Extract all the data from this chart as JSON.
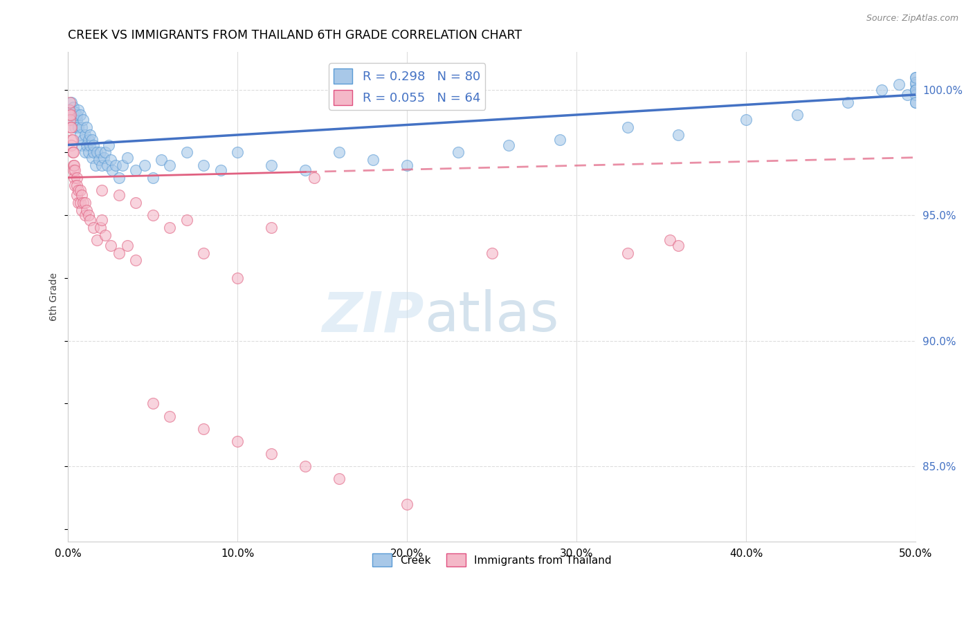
{
  "title": "CREEK VS IMMIGRANTS FROM THAILAND 6TH GRADE CORRELATION CHART",
  "source": "Source: ZipAtlas.com",
  "ylabel": "6th Grade",
  "xlim": [
    0.0,
    50.0
  ],
  "ylim": [
    82.0,
    101.5
  ],
  "x_ticks": [
    0.0,
    10.0,
    20.0,
    30.0,
    40.0,
    50.0
  ],
  "x_tick_labels": [
    "0.0%",
    "10.0%",
    "20.0%",
    "30.0%",
    "40.0%",
    "50.0%"
  ],
  "y_ticks_right": [
    85.0,
    90.0,
    95.0,
    100.0
  ],
  "y_tick_labels_right": [
    "85.0%",
    "90.0%",
    "95.0%",
    "100.0%"
  ],
  "legend_top": [
    {
      "label": "R = 0.298   N = 80",
      "face": "#a8c8e8",
      "edge": "#5b9bd5"
    },
    {
      "label": "R = 0.055   N = 64",
      "face": "#f4b8c8",
      "edge": "#e05080"
    }
  ],
  "legend_bottom": [
    "Creek",
    "Immigrants from Thailand"
  ],
  "watermark_zip": "ZIP",
  "watermark_atlas": "atlas",
  "blue_line_color": "#4472c4",
  "pink_line_color": "#e06080",
  "blue_scatter_face": "#a8c8e8",
  "blue_scatter_edge": "#5b9bd5",
  "pink_scatter_face": "#f4b8c8",
  "pink_scatter_edge": "#e06080",
  "creek_x": [
    0.1,
    0.2,
    0.2,
    0.3,
    0.3,
    0.4,
    0.4,
    0.5,
    0.5,
    0.6,
    0.6,
    0.7,
    0.7,
    0.8,
    0.8,
    0.9,
    0.9,
    1.0,
    1.0,
    1.1,
    1.1,
    1.2,
    1.2,
    1.3,
    1.3,
    1.4,
    1.4,
    1.5,
    1.5,
    1.6,
    1.7,
    1.8,
    1.9,
    2.0,
    2.1,
    2.2,
    2.3,
    2.4,
    2.5,
    2.6,
    2.8,
    3.0,
    3.2,
    3.5,
    4.0,
    4.5,
    5.0,
    5.5,
    6.0,
    7.0,
    8.0,
    9.0,
    10.0,
    12.0,
    14.0,
    16.0,
    18.0,
    20.0,
    23.0,
    26.0,
    29.0,
    33.0,
    36.0,
    40.0,
    43.0,
    46.0,
    48.0,
    49.0,
    49.5,
    50.0,
    50.0,
    50.0,
    50.0,
    50.0,
    50.0,
    50.0,
    50.0,
    50.0,
    50.0,
    50.0
  ],
  "creek_y": [
    99.2,
    98.8,
    99.5,
    99.0,
    99.3,
    98.5,
    99.1,
    98.8,
    99.0,
    98.5,
    99.2,
    98.2,
    99.0,
    97.8,
    98.5,
    98.0,
    98.8,
    97.5,
    98.2,
    97.8,
    98.5,
    98.0,
    97.5,
    97.8,
    98.2,
    97.3,
    98.0,
    97.5,
    97.8,
    97.0,
    97.5,
    97.2,
    97.5,
    97.0,
    97.3,
    97.5,
    97.0,
    97.8,
    97.2,
    96.8,
    97.0,
    96.5,
    97.0,
    97.3,
    96.8,
    97.0,
    96.5,
    97.2,
    97.0,
    97.5,
    97.0,
    96.8,
    97.5,
    97.0,
    96.8,
    97.5,
    97.2,
    97.0,
    97.5,
    97.8,
    98.0,
    98.5,
    98.2,
    98.8,
    99.0,
    99.5,
    100.0,
    100.2,
    99.8,
    100.0,
    100.5,
    100.0,
    99.5,
    100.2,
    100.0,
    99.8,
    100.3,
    99.5,
    100.0,
    100.5
  ],
  "thailand_x": [
    0.05,
    0.08,
    0.1,
    0.12,
    0.15,
    0.15,
    0.18,
    0.2,
    0.2,
    0.25,
    0.25,
    0.3,
    0.3,
    0.3,
    0.35,
    0.35,
    0.4,
    0.4,
    0.5,
    0.5,
    0.5,
    0.6,
    0.6,
    0.7,
    0.7,
    0.8,
    0.8,
    0.9,
    1.0,
    1.0,
    1.1,
    1.2,
    1.3,
    1.5,
    1.7,
    1.9,
    2.0,
    2.2,
    2.5,
    3.0,
    3.5,
    4.0,
    5.0,
    6.0,
    7.0,
    8.0,
    10.0,
    12.0,
    14.5,
    25.0,
    33.0,
    35.5,
    36.0,
    2.0,
    3.0,
    4.0,
    5.0,
    6.0,
    8.0,
    10.0,
    12.0,
    14.0,
    16.0,
    20.0
  ],
  "thailand_y": [
    99.0,
    99.2,
    98.8,
    99.5,
    99.0,
    98.5,
    98.0,
    97.8,
    98.5,
    97.5,
    98.0,
    97.0,
    97.5,
    96.8,
    97.0,
    96.5,
    96.2,
    96.8,
    96.5,
    95.8,
    96.2,
    95.5,
    96.0,
    95.5,
    96.0,
    95.2,
    95.8,
    95.5,
    95.0,
    95.5,
    95.2,
    95.0,
    94.8,
    94.5,
    94.0,
    94.5,
    94.8,
    94.2,
    93.8,
    93.5,
    93.8,
    93.2,
    95.0,
    94.5,
    94.8,
    93.5,
    92.5,
    94.5,
    96.5,
    93.5,
    93.5,
    94.0,
    93.8,
    96.0,
    95.8,
    95.5,
    87.5,
    87.0,
    86.5,
    86.0,
    85.5,
    85.0,
    84.5,
    83.5
  ],
  "thailand_solid_x_max": 14.0,
  "creek_trend_y_at_0": 97.8,
  "creek_trend_y_at_50": 99.8,
  "thailand_trend_y_at_0": 96.5,
  "thailand_trend_y_at_50": 97.3
}
